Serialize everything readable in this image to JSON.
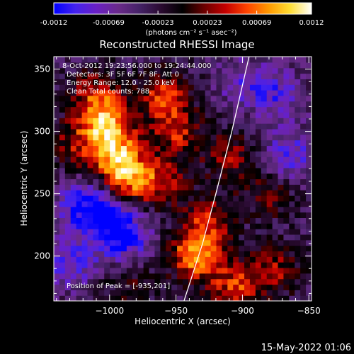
{
  "colors": {
    "background": "#000000",
    "foreground": "#ffffff",
    "colormap": [
      "#0000ff",
      "#4422ee",
      "#6a20c4",
      "#6a2a8a",
      "#442266",
      "#2a0a30",
      "#000000",
      "#6a0000",
      "#c40000",
      "#ff4400",
      "#ff9900",
      "#ffdd33",
      "#ffffff"
    ]
  },
  "colorbar": {
    "ticks": [
      "-0.0012",
      "-0.00069",
      "-0.00023",
      "0.00023",
      "0.00069",
      "0.0012"
    ],
    "range": [
      -0.0012,
      0.0012
    ],
    "unit_label": "(photons cm⁻² s⁻¹ asec⁻²)"
  },
  "chart_data": {
    "type": "heatmap",
    "title": "Reconstructed RHESSI Image",
    "xlabel": "Heliocentric X (arcsec)",
    "ylabel": "Heliocentric Y (arcsec)",
    "xlim": [
      -1042,
      -848
    ],
    "ylim": [
      164,
      360
    ],
    "x_ticks": [
      -1000,
      -950,
      -900,
      -850
    ],
    "y_ticks": [
      200,
      250,
      300,
      350
    ],
    "annotations": [
      "8-Oct-2012 19:23:56.000 to 19:24:44.000",
      "Detectors: 3F 5F 6F 7F 8F, Att 0",
      "Energy Range: 12.0 - 25.0 keV",
      "Clean    Total counts: 788.",
      "Position of Peak = [-935,201]"
    ],
    "peak_position": [
      -935,
      201
    ],
    "limb_points": [
      [
        -944,
        164
      ],
      [
        -930,
        210
      ],
      [
        -920,
        250
      ],
      [
        -908,
        300
      ],
      [
        -895,
        360
      ]
    ],
    "emission_regions": [
      {
        "x": -1003,
        "y": 305,
        "level": 0.0011
      },
      {
        "x": -995,
        "y": 280,
        "level": 0.001
      },
      {
        "x": -985,
        "y": 260,
        "level": 0.0009
      },
      {
        "x": -1010,
        "y": 330,
        "level": 0.0007
      },
      {
        "x": -960,
        "y": 330,
        "level": 0.0008
      },
      {
        "x": -950,
        "y": 300,
        "level": 0.0007
      },
      {
        "x": -935,
        "y": 201,
        "level": 0.0012
      },
      {
        "x": -925,
        "y": 230,
        "level": 0.0007
      },
      {
        "x": -910,
        "y": 280,
        "level": 0.0006
      },
      {
        "x": -905,
        "y": 175,
        "level": 0.0008
      },
      {
        "x": -875,
        "y": 190,
        "level": 0.0006
      },
      {
        "x": -880,
        "y": 250,
        "level": 0.0005
      },
      {
        "x": -960,
        "y": 260,
        "level": 0.0006
      },
      {
        "x": -1030,
        "y": 290,
        "level": 0.0005
      },
      {
        "x": -985,
        "y": 175,
        "level": 0.0004
      },
      {
        "x": -1020,
        "y": 240,
        "level": -0.0007
      },
      {
        "x": -1030,
        "y": 195,
        "level": -0.0006
      },
      {
        "x": -990,
        "y": 215,
        "level": -0.0008
      },
      {
        "x": -875,
        "y": 330,
        "level": -0.0005
      },
      {
        "x": -865,
        "y": 280,
        "level": -0.0006
      },
      {
        "x": -900,
        "y": 340,
        "level": -0.0004
      },
      {
        "x": -1000,
        "y": 235,
        "level": -0.0006
      }
    ]
  },
  "footer": {
    "timestamp": "15-May-2022 01:06"
  }
}
